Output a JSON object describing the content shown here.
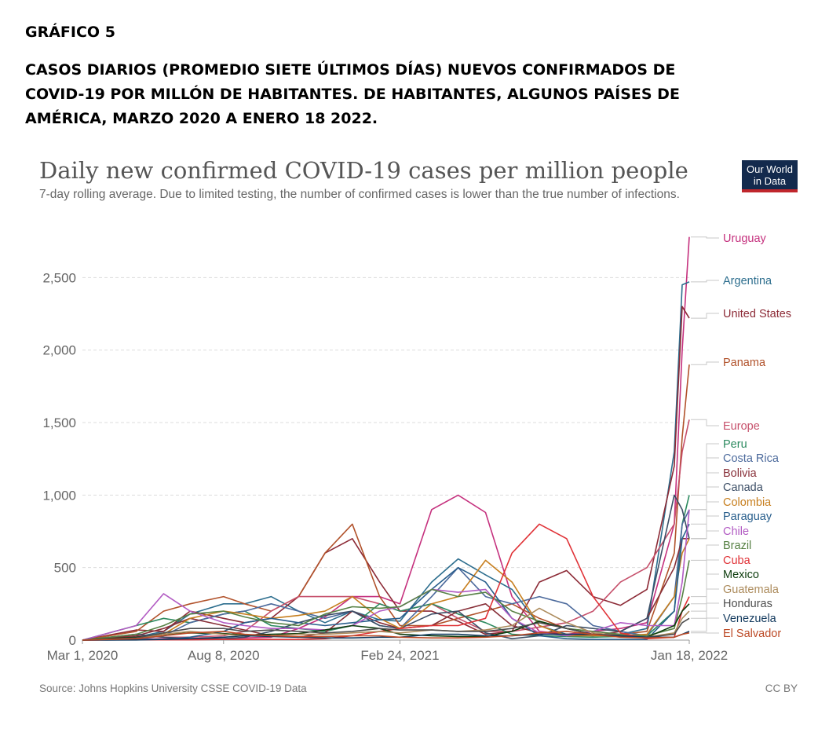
{
  "document": {
    "label": "GRÁFICO 5",
    "caption": "CASOS DIARIOS (PROMEDIO SIETE ÚLTIMOS DÍAS) NUEVOS CONFIRMADOS DE COVID-19 POR MILLÓN DE HABITANTES. DE HABITANTES, ALGUNOS PAÍSES DE AMÉRICA, MARZO 2020 A ENERO 18 2022."
  },
  "logo": {
    "line1": "Our World",
    "line2": "in Data",
    "bg": "#132a4d",
    "accent": "#c0262c"
  },
  "footer": {
    "source": "Source: Johns Hopkins University CSSE COVID-19 Data",
    "license": "CC BY"
  },
  "chart_data": {
    "type": "line",
    "title": "Daily new confirmed COVID-19 cases per million people",
    "subtitle": "7-day rolling average. Due to limited testing, the number of confirmed cases is lower than the true number of infections.",
    "xlabel": "",
    "ylabel": "",
    "x_ticks": [
      "Mar 1, 2020",
      "Aug 8, 2020",
      "Feb 24, 2021",
      "Jan 18, 2022"
    ],
    "x": [
      "2020-03-01",
      "2020-05-01",
      "2020-06-01",
      "2020-07-01",
      "2020-08-08",
      "2020-09-01",
      "2020-10-01",
      "2020-11-01",
      "2020-12-01",
      "2021-01-01",
      "2021-02-01",
      "2021-02-24",
      "2021-04-01",
      "2021-05-01",
      "2021-06-01",
      "2021-07-01",
      "2021-08-01",
      "2021-09-01",
      "2021-10-01",
      "2021-11-01",
      "2021-12-01",
      "2022-01-01",
      "2022-01-10",
      "2022-01-18"
    ],
    "ylim": [
      0,
      2800
    ],
    "y_ticks": [
      0,
      500,
      1000,
      1500,
      2000,
      2500
    ],
    "grid": true,
    "legend_position": "right",
    "series": [
      {
        "name": "Uruguay",
        "color": "#c5317e",
        "values": [
          0,
          5,
          10,
          10,
          10,
          15,
          20,
          80,
          160,
          300,
          300,
          250,
          900,
          1000,
          880,
          300,
          60,
          40,
          60,
          80,
          120,
          800,
          2000,
          2780
        ]
      },
      {
        "name": "Argentina",
        "color": "#2d6e8e",
        "values": [
          0,
          20,
          60,
          180,
          250,
          250,
          300,
          200,
          120,
          200,
          140,
          130,
          400,
          560,
          450,
          350,
          100,
          40,
          30,
          40,
          80,
          1300,
          2450,
          2470
        ]
      },
      {
        "name": "United States",
        "color": "#8c2a36",
        "values": [
          0,
          70,
          60,
          200,
          150,
          120,
          150,
          300,
          600,
          700,
          400,
          200,
          200,
          130,
          40,
          60,
          400,
          480,
          300,
          240,
          350,
          1200,
          2300,
          2220
        ]
      },
      {
        "name": "Panama",
        "color": "#b1522b",
        "values": [
          0,
          60,
          200,
          250,
          300,
          250,
          200,
          300,
          600,
          800,
          300,
          100,
          100,
          150,
          200,
          250,
          150,
          80,
          40,
          40,
          60,
          600,
          1400,
          1900
        ]
      },
      {
        "name": "Europe",
        "color": "#c6506b",
        "values": [
          0,
          30,
          20,
          20,
          30,
          60,
          200,
          300,
          300,
          300,
          250,
          200,
          250,
          150,
          60,
          60,
          90,
          120,
          200,
          400,
          500,
          800,
          1300,
          1520
        ]
      },
      {
        "name": "Peru",
        "color": "#2c8a5f",
        "values": [
          0,
          100,
          150,
          120,
          180,
          200,
          100,
          80,
          60,
          100,
          250,
          200,
          250,
          180,
          120,
          40,
          30,
          25,
          20,
          25,
          30,
          200,
          800,
          1000
        ]
      },
      {
        "name": "Costa Rica",
        "color": "#4c6a9c",
        "values": [
          0,
          5,
          30,
          120,
          180,
          200,
          250,
          200,
          150,
          200,
          100,
          80,
          300,
          500,
          300,
          250,
          300,
          250,
          100,
          60,
          30,
          300,
          800,
          900
        ]
      },
      {
        "name": "Bolivia",
        "color": "#883039",
        "values": [
          0,
          30,
          80,
          150,
          100,
          70,
          30,
          20,
          50,
          200,
          120,
          80,
          100,
          200,
          250,
          100,
          50,
          40,
          30,
          60,
          150,
          500,
          700,
          700
        ]
      },
      {
        "name": "Canada",
        "color": "#3c4e66",
        "values": [
          0,
          40,
          20,
          10,
          10,
          20,
          60,
          120,
          170,
          200,
          100,
          80,
          180,
          200,
          50,
          10,
          30,
          100,
          80,
          60,
          150,
          1000,
          900,
          700
        ]
      },
      {
        "name": "Colombia",
        "color": "#c77f1f",
        "values": [
          0,
          10,
          40,
          150,
          200,
          180,
          150,
          170,
          200,
          300,
          150,
          80,
          250,
          300,
          550,
          400,
          100,
          30,
          30,
          30,
          40,
          300,
          600,
          700
        ]
      },
      {
        "name": "Paraguay",
        "color": "#285e8c",
        "values": [
          0,
          5,
          5,
          20,
          60,
          120,
          150,
          120,
          100,
          120,
          140,
          150,
          350,
          500,
          400,
          150,
          30,
          10,
          5,
          5,
          5,
          200,
          700,
          800
        ]
      },
      {
        "name": "Chile",
        "color": "#b25bc3",
        "values": [
          0,
          100,
          320,
          200,
          120,
          100,
          80,
          80,
          70,
          100,
          200,
          230,
          350,
          330,
          350,
          150,
          50,
          30,
          60,
          120,
          100,
          100,
          400,
          900
        ]
      },
      {
        "name": "Brazil",
        "color": "#578145",
        "values": [
          0,
          40,
          100,
          180,
          200,
          160,
          120,
          100,
          180,
          230,
          220,
          230,
          350,
          300,
          330,
          200,
          130,
          80,
          60,
          40,
          30,
          80,
          300,
          550
        ]
      },
      {
        "name": "Cuba",
        "color": "#e03237",
        "values": [
          0,
          2,
          2,
          2,
          5,
          5,
          5,
          5,
          10,
          30,
          60,
          80,
          100,
          100,
          150,
          600,
          800,
          700,
          300,
          50,
          10,
          20,
          200,
          300
        ]
      },
      {
        "name": "Mexico",
        "color": "#0c3c0c",
        "values": [
          0,
          20,
          40,
          50,
          45,
          35,
          40,
          45,
          70,
          100,
          80,
          40,
          30,
          25,
          25,
          60,
          130,
          80,
          40,
          25,
          20,
          100,
          200,
          250
        ]
      },
      {
        "name": "Guatemala",
        "color": "#ac8b5c",
        "values": [
          0,
          10,
          40,
          60,
          40,
          30,
          30,
          40,
          40,
          50,
          60,
          50,
          70,
          60,
          70,
          100,
          220,
          120,
          50,
          30,
          20,
          50,
          150,
          200
        ]
      },
      {
        "name": "Honduras",
        "color": "#4d4d4d",
        "values": [
          0,
          15,
          50,
          80,
          80,
          60,
          70,
          60,
          50,
          60,
          80,
          70,
          70,
          60,
          60,
          80,
          120,
          80,
          40,
          30,
          20,
          40,
          120,
          150
        ]
      },
      {
        "name": "Venezuela",
        "color": "#133a5e",
        "values": [
          0,
          1,
          5,
          10,
          20,
          30,
          25,
          20,
          15,
          15,
          20,
          20,
          40,
          40,
          30,
          30,
          40,
          40,
          40,
          30,
          20,
          20,
          40,
          60
        ]
      },
      {
        "name": "El Salvador",
        "color": "#bc4a26",
        "values": [
          0,
          10,
          30,
          50,
          60,
          40,
          30,
          25,
          25,
          30,
          30,
          20,
          15,
          15,
          20,
          30,
          50,
          60,
          40,
          20,
          15,
          20,
          40,
          50
        ]
      }
    ]
  }
}
